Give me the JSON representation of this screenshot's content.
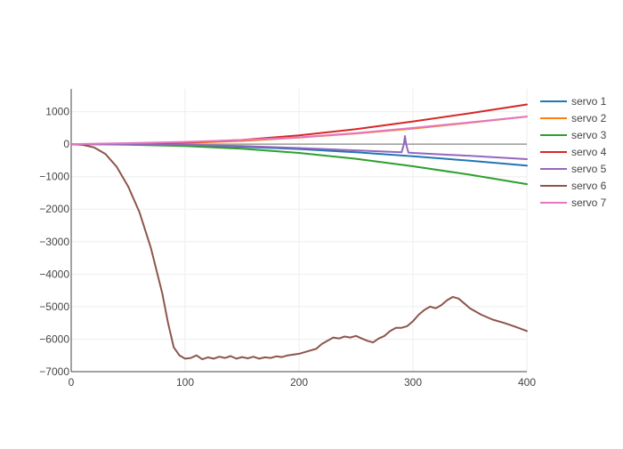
{
  "chart_data": {
    "type": "line",
    "title": "",
    "xlabel": "",
    "ylabel": "",
    "xlim": [
      0,
      400
    ],
    "ylim": [
      -7000,
      1700
    ],
    "x_ticks": [
      0,
      100,
      200,
      300,
      400
    ],
    "y_ticks": [
      1000,
      0,
      -1000,
      -2000,
      -3000,
      -4000,
      -5000,
      -6000,
      -7000
    ],
    "x_tick_labels": [
      "0",
      "100",
      "200",
      "300",
      "400"
    ],
    "y_tick_labels": [
      "1000",
      "0",
      "−1000",
      "−2000",
      "−3000",
      "−4000",
      "−5000",
      "−6000",
      "−7000"
    ],
    "grid": true,
    "legend_position": "top-right",
    "series": [
      {
        "name": "servo 1",
        "color": "#1f77b4",
        "x": [
          0,
          50,
          100,
          150,
          200,
          250,
          300,
          350,
          400
        ],
        "y": [
          0,
          -5,
          -30,
          -80,
          -150,
          -250,
          -370,
          -510,
          -660
        ]
      },
      {
        "name": "servo 2",
        "color": "#ff7f0e",
        "x": [
          0,
          50,
          100,
          150,
          200,
          250,
          300,
          350,
          400
        ],
        "y": [
          0,
          5,
          40,
          100,
          200,
          330,
          480,
          660,
          850
        ]
      },
      {
        "name": "servo 3",
        "color": "#2ca02c",
        "x": [
          0,
          50,
          100,
          150,
          200,
          250,
          300,
          350,
          400
        ],
        "y": [
          0,
          -15,
          -60,
          -140,
          -270,
          -450,
          -680,
          -940,
          -1230
        ]
      },
      {
        "name": "servo 4",
        "color": "#d62728",
        "x": [
          0,
          50,
          100,
          150,
          200,
          250,
          300,
          350,
          400
        ],
        "y": [
          0,
          10,
          50,
          130,
          270,
          460,
          700,
          950,
          1220
        ]
      },
      {
        "name": "servo 5",
        "color": "#9467bd",
        "x": [
          0,
          50,
          100,
          150,
          200,
          250,
          290,
          292,
          293,
          294,
          296,
          300,
          350,
          400
        ],
        "y": [
          0,
          -3,
          -20,
          -60,
          -120,
          -190,
          -250,
          0,
          250,
          0,
          -260,
          -270,
          -360,
          -460
        ]
      },
      {
        "name": "servo 6",
        "color": "#8c564b",
        "x": [
          0,
          10,
          20,
          30,
          40,
          50,
          60,
          70,
          80,
          85,
          90,
          95,
          100,
          105,
          110,
          115,
          120,
          125,
          130,
          135,
          140,
          145,
          150,
          155,
          160,
          165,
          170,
          175,
          180,
          185,
          190,
          200,
          210,
          215,
          220,
          225,
          230,
          235,
          240,
          245,
          250,
          255,
          260,
          265,
          270,
          275,
          280,
          285,
          290,
          295,
          300,
          305,
          310,
          315,
          320,
          325,
          330,
          335,
          340,
          345,
          350,
          355,
          360,
          370,
          380,
          390,
          400
        ],
        "y": [
          0,
          -20,
          -100,
          -300,
          -700,
          -1300,
          -2100,
          -3200,
          -4600,
          -5500,
          -6250,
          -6500,
          -6600,
          -6580,
          -6500,
          -6620,
          -6560,
          -6600,
          -6540,
          -6580,
          -6520,
          -6600,
          -6550,
          -6590,
          -6540,
          -6600,
          -6560,
          -6580,
          -6530,
          -6550,
          -6500,
          -6450,
          -6350,
          -6300,
          -6150,
          -6050,
          -5950,
          -5980,
          -5920,
          -5950,
          -5900,
          -5980,
          -6050,
          -6100,
          -5980,
          -5900,
          -5750,
          -5650,
          -5650,
          -5600,
          -5450,
          -5250,
          -5100,
          -5000,
          -5050,
          -4950,
          -4800,
          -4700,
          -4750,
          -4900,
          -5050,
          -5150,
          -5250,
          -5400,
          -5500,
          -5620,
          -5750
        ]
      },
      {
        "name": "servo 7",
        "color": "#e377c2",
        "x": [
          0,
          50,
          100,
          150,
          200,
          250,
          300,
          350,
          400
        ],
        "y": [
          0,
          30,
          70,
          130,
          210,
          340,
          500,
          670,
          850
        ]
      }
    ],
    "reference_line": {
      "color": "#999999",
      "x": [
        0,
        400
      ],
      "y": [
        0,
        0
      ]
    }
  }
}
